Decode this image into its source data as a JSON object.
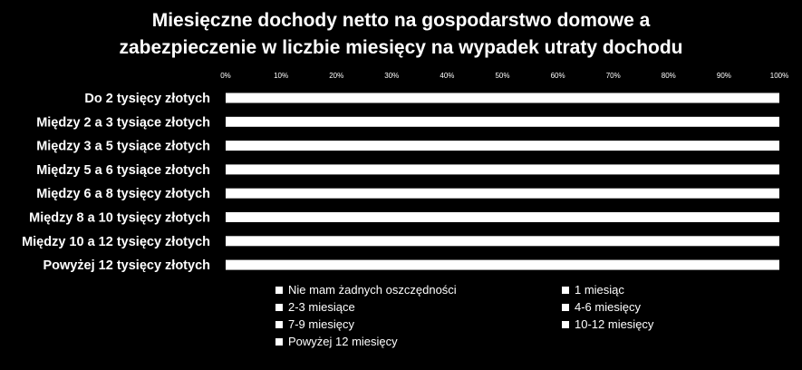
{
  "chart_data": {
    "type": "bar",
    "orientation": "horizontal",
    "stacked": "percent",
    "title": [
      "Miesięczne dochody netto na gospodarstwo domowe a",
      "zabezpieczenie w liczbie miesięcy na wypadek utraty dochodu"
    ],
    "categories": [
      "Do 2 tysięcy złotych",
      "Między 2 a 3 tysiące złotych",
      "Między 3 a 5 tysiące złotych",
      "Między 5 a 6 tysiące złotych",
      "Między 6 a 8 tysięcy złotych",
      "Między 8 a 10 tysięcy złotych",
      "Między 10 a 12 tysięcy złotych",
      "Powyżej 12 tysięcy złotych"
    ],
    "x_ticks": [
      "0%",
      "10%",
      "20%",
      "30%",
      "40%",
      "50%",
      "60%",
      "70%",
      "80%",
      "90%",
      "100%"
    ],
    "xlim": [
      0,
      100
    ],
    "bar_total_percent": [
      100,
      100,
      100,
      100,
      100,
      100,
      100,
      100
    ],
    "series": [
      {
        "name": "Nie mam żadnych oszczędności"
      },
      {
        "name": "1 miesiąc"
      },
      {
        "name": "2-3 miesiące"
      },
      {
        "name": "4-6 miesięcy"
      },
      {
        "name": "7-9 miesięcy"
      },
      {
        "name": "10-12 miesięcy"
      },
      {
        "name": "Powyżej 12 miesięcy"
      }
    ],
    "legend_position": "bottom",
    "grid": false,
    "colors": {
      "background": "#000000",
      "bars": "#ffffff",
      "text": "#ffffff"
    }
  }
}
